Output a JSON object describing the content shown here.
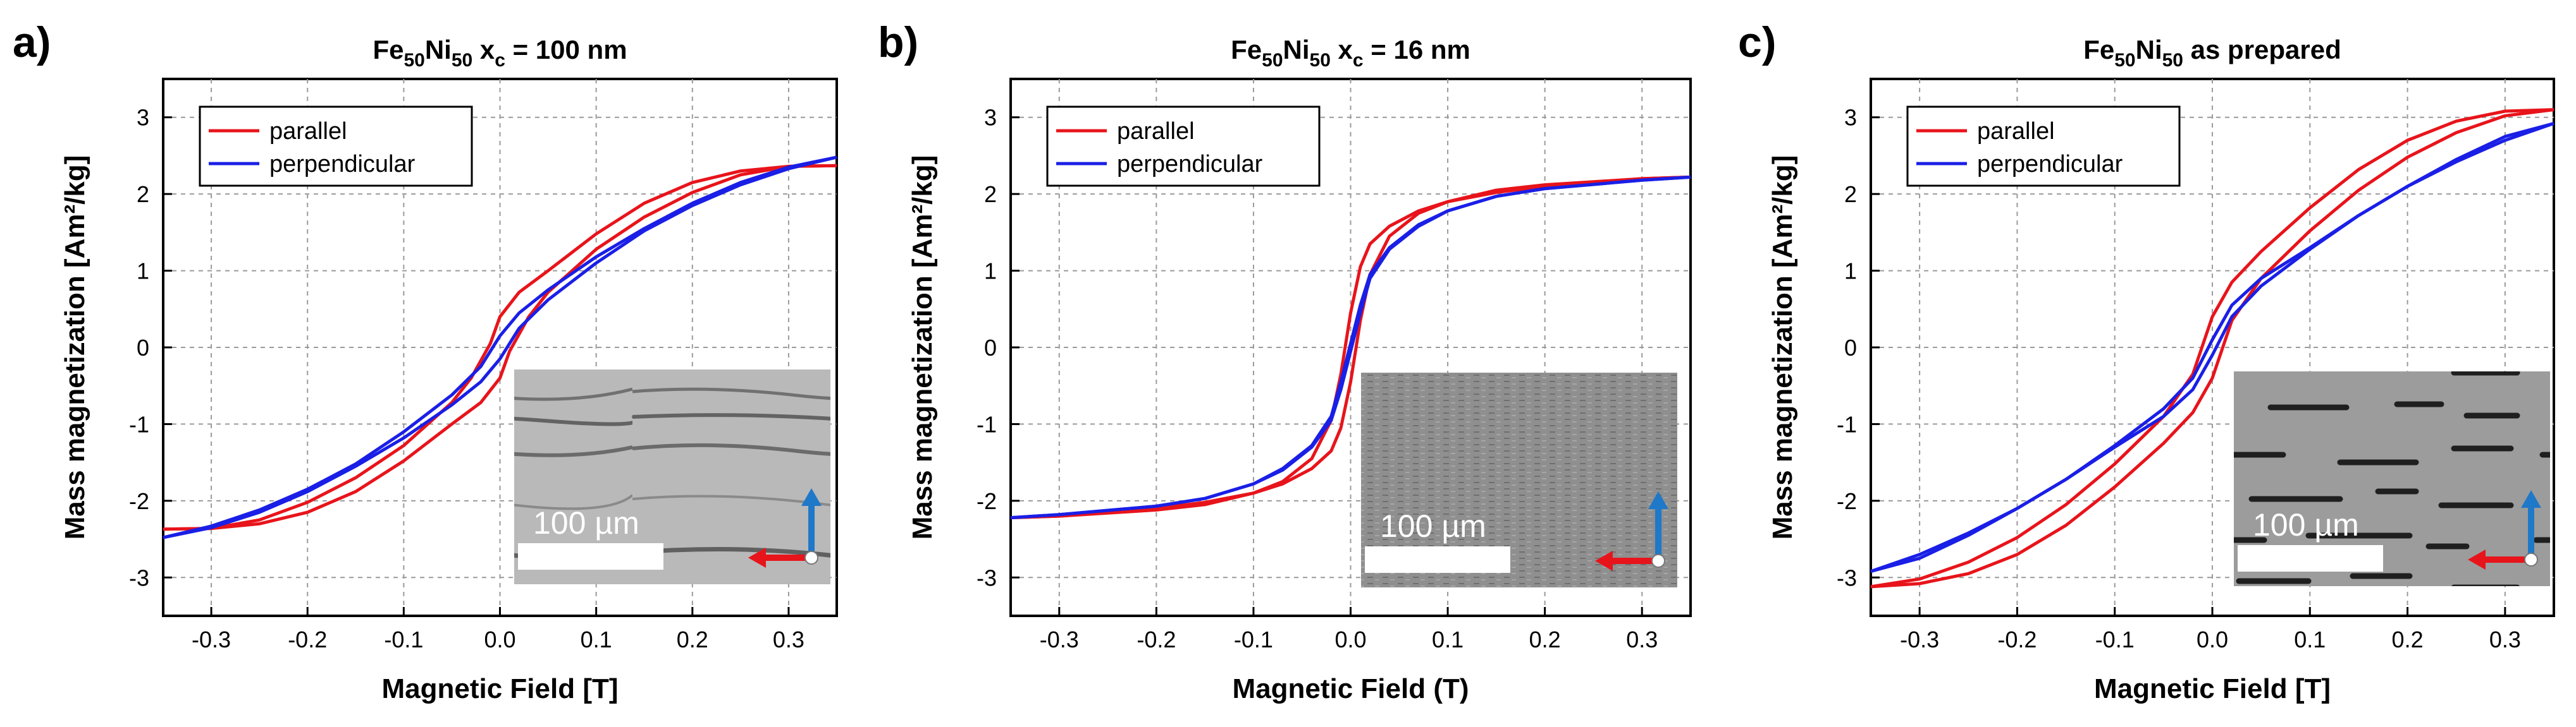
{
  "colors": {
    "parallel": "#e8141b",
    "perpendicular": "#1a1fe6",
    "grid": "#9a9a9a",
    "arrow_red": "#e8141b",
    "arrow_blue": "#1f78c8"
  },
  "chart_data": [
    {
      "type": "line",
      "panel": "a)",
      "title": {
        "prefix": "Fe",
        "sub1": "50",
        "mid": "Ni",
        "sub2": "50",
        "suffix": " x",
        "sub3": "c",
        "tail": " = 100 nm"
      },
      "xlabel": "Magnetic Field [T]",
      "ylabel": "Mass magnetization [Am²/kg]",
      "xlim": [
        -0.35,
        0.35
      ],
      "ylim": [
        -3.5,
        3.5
      ],
      "xticks": [
        -0.3,
        -0.2,
        -0.1,
        0.0,
        0.1,
        0.2,
        0.3
      ],
      "xtick_labels": [
        "-0.3",
        "-0.2",
        "-0.1",
        "0.0",
        "0.1",
        "0.2",
        "0.3"
      ],
      "yticks": [
        -3,
        -2,
        -1,
        0,
        1,
        2,
        3
      ],
      "ytick_labels": [
        "-3",
        "-2",
        "-1",
        "0",
        "1",
        "2",
        "3"
      ],
      "grid": true,
      "legend": "top-left",
      "inset_scale_label": "100 µm",
      "series": [
        {
          "name": "parallel",
          "color_key": "parallel",
          "upper": [
            [
              -0.35,
              -2.37
            ],
            [
              -0.3,
              -2.36
            ],
            [
              -0.25,
              -2.25
            ],
            [
              -0.2,
              -2.02
            ],
            [
              -0.15,
              -1.7
            ],
            [
              -0.1,
              -1.28
            ],
            [
              -0.05,
              -0.72
            ],
            [
              -0.03,
              -0.4
            ],
            [
              -0.01,
              0.05
            ],
            [
              0.0,
              0.4
            ],
            [
              0.02,
              0.72
            ],
            [
              0.05,
              1.0
            ],
            [
              0.1,
              1.48
            ],
            [
              0.15,
              1.88
            ],
            [
              0.2,
              2.15
            ],
            [
              0.25,
              2.3
            ],
            [
              0.3,
              2.36
            ],
            [
              0.35,
              2.37
            ]
          ],
          "lower": [
            [
              0.35,
              2.37
            ],
            [
              0.3,
              2.36
            ],
            [
              0.25,
              2.25
            ],
            [
              0.2,
              2.02
            ],
            [
              0.15,
              1.7
            ],
            [
              0.1,
              1.28
            ],
            [
              0.05,
              0.72
            ],
            [
              0.03,
              0.4
            ],
            [
              0.01,
              -0.05
            ],
            [
              0.0,
              -0.4
            ],
            [
              -0.02,
              -0.72
            ],
            [
              -0.05,
              -1.0
            ],
            [
              -0.1,
              -1.48
            ],
            [
              -0.15,
              -1.88
            ],
            [
              -0.2,
              -2.15
            ],
            [
              -0.25,
              -2.3
            ],
            [
              -0.3,
              -2.36
            ],
            [
              -0.35,
              -2.37
            ]
          ]
        },
        {
          "name": "perpendicular",
          "color_key": "perpendicular",
          "upper": [
            [
              -0.35,
              -2.48
            ],
            [
              -0.3,
              -2.33
            ],
            [
              -0.25,
              -2.12
            ],
            [
              -0.2,
              -1.85
            ],
            [
              -0.15,
              -1.52
            ],
            [
              -0.1,
              -1.1
            ],
            [
              -0.05,
              -0.62
            ],
            [
              -0.02,
              -0.25
            ],
            [
              0.0,
              0.15
            ],
            [
              0.02,
              0.45
            ],
            [
              0.05,
              0.75
            ],
            [
              0.1,
              1.18
            ],
            [
              0.15,
              1.55
            ],
            [
              0.2,
              1.88
            ],
            [
              0.25,
              2.15
            ],
            [
              0.3,
              2.35
            ],
            [
              0.35,
              2.48
            ]
          ],
          "lower": [
            [
              0.35,
              2.48
            ],
            [
              0.3,
              2.33
            ],
            [
              0.25,
              2.12
            ],
            [
              0.2,
              1.85
            ],
            [
              0.15,
              1.52
            ],
            [
              0.1,
              1.1
            ],
            [
              0.05,
              0.62
            ],
            [
              0.02,
              0.25
            ],
            [
              0.0,
              -0.15
            ],
            [
              -0.02,
              -0.45
            ],
            [
              -0.05,
              -0.75
            ],
            [
              -0.1,
              -1.18
            ],
            [
              -0.15,
              -1.55
            ],
            [
              -0.2,
              -1.88
            ],
            [
              -0.25,
              -2.15
            ],
            [
              -0.3,
              -2.35
            ],
            [
              -0.35,
              -2.48
            ]
          ]
        }
      ]
    },
    {
      "type": "line",
      "panel": "b)",
      "title": {
        "prefix": "Fe",
        "sub1": "50",
        "mid": "Ni",
        "sub2": "50",
        "suffix": " x",
        "sub3": "c",
        "tail": " = 16 nm"
      },
      "xlabel": "Magnetic Field (T)",
      "ylabel": "Mass magnetization [Am²/kg]",
      "xlim": [
        -0.35,
        0.35
      ],
      "ylim": [
        -3.5,
        3.5
      ],
      "xticks": [
        -0.3,
        -0.2,
        -0.1,
        0.0,
        0.1,
        0.2,
        0.3
      ],
      "xtick_labels": [
        "-0.3",
        "-0.2",
        "-0.1",
        "0.0",
        "0.1",
        "0.2",
        "0.3"
      ],
      "yticks": [
        -3,
        -2,
        -1,
        0,
        1,
        2,
        3
      ],
      "ytick_labels": [
        "-3",
        "-2",
        "-1",
        "0",
        "1",
        "2",
        "3"
      ],
      "grid": true,
      "legend": "top-left",
      "inset_scale_label": "100 µm",
      "series": [
        {
          "name": "parallel",
          "color_key": "parallel",
          "upper": [
            [
              -0.35,
              -2.22
            ],
            [
              -0.3,
              -2.2
            ],
            [
              -0.2,
              -2.12
            ],
            [
              -0.15,
              -2.05
            ],
            [
              -0.1,
              -1.9
            ],
            [
              -0.07,
              -1.75
            ],
            [
              -0.04,
              -1.45
            ],
            [
              -0.02,
              -0.95
            ],
            [
              -0.01,
              -0.35
            ],
            [
              0.0,
              0.45
            ],
            [
              0.01,
              1.05
            ],
            [
              0.02,
              1.35
            ],
            [
              0.04,
              1.58
            ],
            [
              0.07,
              1.78
            ],
            [
              0.1,
              1.9
            ],
            [
              0.15,
              2.02
            ],
            [
              0.2,
              2.1
            ],
            [
              0.3,
              2.2
            ],
            [
              0.35,
              2.22
            ]
          ],
          "lower": [
            [
              0.35,
              2.22
            ],
            [
              0.3,
              2.2
            ],
            [
              0.2,
              2.12
            ],
            [
              0.15,
              2.05
            ],
            [
              0.1,
              1.9
            ],
            [
              0.07,
              1.75
            ],
            [
              0.04,
              1.45
            ],
            [
              0.02,
              0.95
            ],
            [
              0.01,
              0.35
            ],
            [
              0.0,
              -0.45
            ],
            [
              -0.01,
              -1.05
            ],
            [
              -0.02,
              -1.35
            ],
            [
              -0.04,
              -1.58
            ],
            [
              -0.07,
              -1.78
            ],
            [
              -0.1,
              -1.9
            ],
            [
              -0.15,
              -2.02
            ],
            [
              -0.2,
              -2.1
            ],
            [
              -0.3,
              -2.2
            ],
            [
              -0.35,
              -2.22
            ]
          ]
        },
        {
          "name": "perpendicular",
          "color_key": "perpendicular",
          "upper": [
            [
              -0.35,
              -2.22
            ],
            [
              -0.3,
              -2.18
            ],
            [
              -0.2,
              -2.07
            ],
            [
              -0.15,
              -1.97
            ],
            [
              -0.1,
              -1.78
            ],
            [
              -0.07,
              -1.58
            ],
            [
              -0.04,
              -1.28
            ],
            [
              -0.02,
              -0.9
            ],
            [
              -0.01,
              -0.45
            ],
            [
              0.0,
              0.05
            ],
            [
              0.01,
              0.55
            ],
            [
              0.02,
              0.95
            ],
            [
              0.04,
              1.3
            ],
            [
              0.07,
              1.6
            ],
            [
              0.1,
              1.78
            ],
            [
              0.15,
              1.97
            ],
            [
              0.2,
              2.07
            ],
            [
              0.3,
              2.18
            ],
            [
              0.35,
              2.22
            ]
          ],
          "lower": [
            [
              0.35,
              2.22
            ],
            [
              0.3,
              2.18
            ],
            [
              0.2,
              2.07
            ],
            [
              0.15,
              1.97
            ],
            [
              0.1,
              1.78
            ],
            [
              0.07,
              1.58
            ],
            [
              0.04,
              1.28
            ],
            [
              0.02,
              0.9
            ],
            [
              0.01,
              0.45
            ],
            [
              0.0,
              -0.05
            ],
            [
              -0.01,
              -0.55
            ],
            [
              -0.02,
              -0.95
            ],
            [
              -0.04,
              -1.3
            ],
            [
              -0.07,
              -1.6
            ],
            [
              -0.1,
              -1.78
            ],
            [
              -0.15,
              -1.97
            ],
            [
              -0.2,
              -2.07
            ],
            [
              -0.3,
              -2.18
            ],
            [
              -0.35,
              -2.22
            ]
          ]
        }
      ]
    },
    {
      "type": "line",
      "panel": "c)",
      "title": {
        "prefix": "Fe",
        "sub1": "50",
        "mid": "Ni",
        "sub2": "50",
        "suffix": "",
        "sub3": "",
        "tail": " as prepared"
      },
      "xlabel": "Magnetic Field [T]",
      "ylabel": "Mass magnetization [Am²/kg]",
      "xlim": [
        -0.35,
        0.35
      ],
      "ylim": [
        -3.5,
        3.5
      ],
      "xticks": [
        -0.3,
        -0.2,
        -0.1,
        0.0,
        0.1,
        0.2,
        0.3
      ],
      "xtick_labels": [
        "-0.3",
        "-0.2",
        "-0.1",
        "0.0",
        "0.1",
        "0.2",
        "0.3"
      ],
      "yticks": [
        -3,
        -2,
        -1,
        0,
        1,
        2,
        3
      ],
      "ytick_labels": [
        "-3",
        "-2",
        "-1",
        "0",
        "1",
        "2",
        "3"
      ],
      "grid": true,
      "legend": "top-left",
      "inset_scale_label": "100 µm",
      "series": [
        {
          "name": "parallel",
          "color_key": "parallel",
          "upper": [
            [
              -0.35,
              -3.12
            ],
            [
              -0.3,
              -3.02
            ],
            [
              -0.25,
              -2.8
            ],
            [
              -0.2,
              -2.48
            ],
            [
              -0.15,
              -2.05
            ],
            [
              -0.1,
              -1.52
            ],
            [
              -0.05,
              -0.9
            ],
            [
              -0.02,
              -0.35
            ],
            [
              0.0,
              0.4
            ],
            [
              0.02,
              0.85
            ],
            [
              0.05,
              1.25
            ],
            [
              0.1,
              1.82
            ],
            [
              0.15,
              2.32
            ],
            [
              0.2,
              2.7
            ],
            [
              0.25,
              2.95
            ],
            [
              0.3,
              3.08
            ],
            [
              0.35,
              3.1
            ]
          ],
          "lower": [
            [
              0.35,
              3.1
            ],
            [
              0.3,
              3.02
            ],
            [
              0.25,
              2.8
            ],
            [
              0.2,
              2.48
            ],
            [
              0.15,
              2.05
            ],
            [
              0.1,
              1.52
            ],
            [
              0.05,
              0.9
            ],
            [
              0.02,
              0.35
            ],
            [
              0.0,
              -0.4
            ],
            [
              -0.02,
              -0.85
            ],
            [
              -0.05,
              -1.25
            ],
            [
              -0.1,
              -1.82
            ],
            [
              -0.15,
              -2.32
            ],
            [
              -0.2,
              -2.7
            ],
            [
              -0.25,
              -2.95
            ],
            [
              -0.3,
              -3.08
            ],
            [
              -0.35,
              -3.12
            ]
          ]
        },
        {
          "name": "perpendicular",
          "color_key": "perpendicular",
          "upper": [
            [
              -0.35,
              -2.92
            ],
            [
              -0.3,
              -2.7
            ],
            [
              -0.25,
              -2.42
            ],
            [
              -0.2,
              -2.1
            ],
            [
              -0.15,
              -1.72
            ],
            [
              -0.1,
              -1.28
            ],
            [
              -0.05,
              -0.8
            ],
            [
              -0.02,
              -0.4
            ],
            [
              0.0,
              0.1
            ],
            [
              0.02,
              0.55
            ],
            [
              0.05,
              0.9
            ],
            [
              0.1,
              1.3
            ],
            [
              0.15,
              1.72
            ],
            [
              0.2,
              2.1
            ],
            [
              0.25,
              2.45
            ],
            [
              0.3,
              2.75
            ],
            [
              0.35,
              2.92
            ]
          ],
          "lower": [
            [
              0.35,
              2.92
            ],
            [
              0.3,
              2.7
            ],
            [
              0.25,
              2.42
            ],
            [
              0.2,
              2.1
            ],
            [
              0.15,
              1.72
            ],
            [
              0.1,
              1.28
            ],
            [
              0.05,
              0.8
            ],
            [
              0.02,
              0.4
            ],
            [
              0.0,
              -0.1
            ],
            [
              -0.02,
              -0.55
            ],
            [
              -0.05,
              -0.9
            ],
            [
              -0.1,
              -1.3
            ],
            [
              -0.15,
              -1.72
            ],
            [
              -0.2,
              -2.1
            ],
            [
              -0.25,
              -2.45
            ],
            [
              -0.3,
              -2.75
            ],
            [
              -0.35,
              -2.92
            ]
          ]
        }
      ]
    }
  ]
}
